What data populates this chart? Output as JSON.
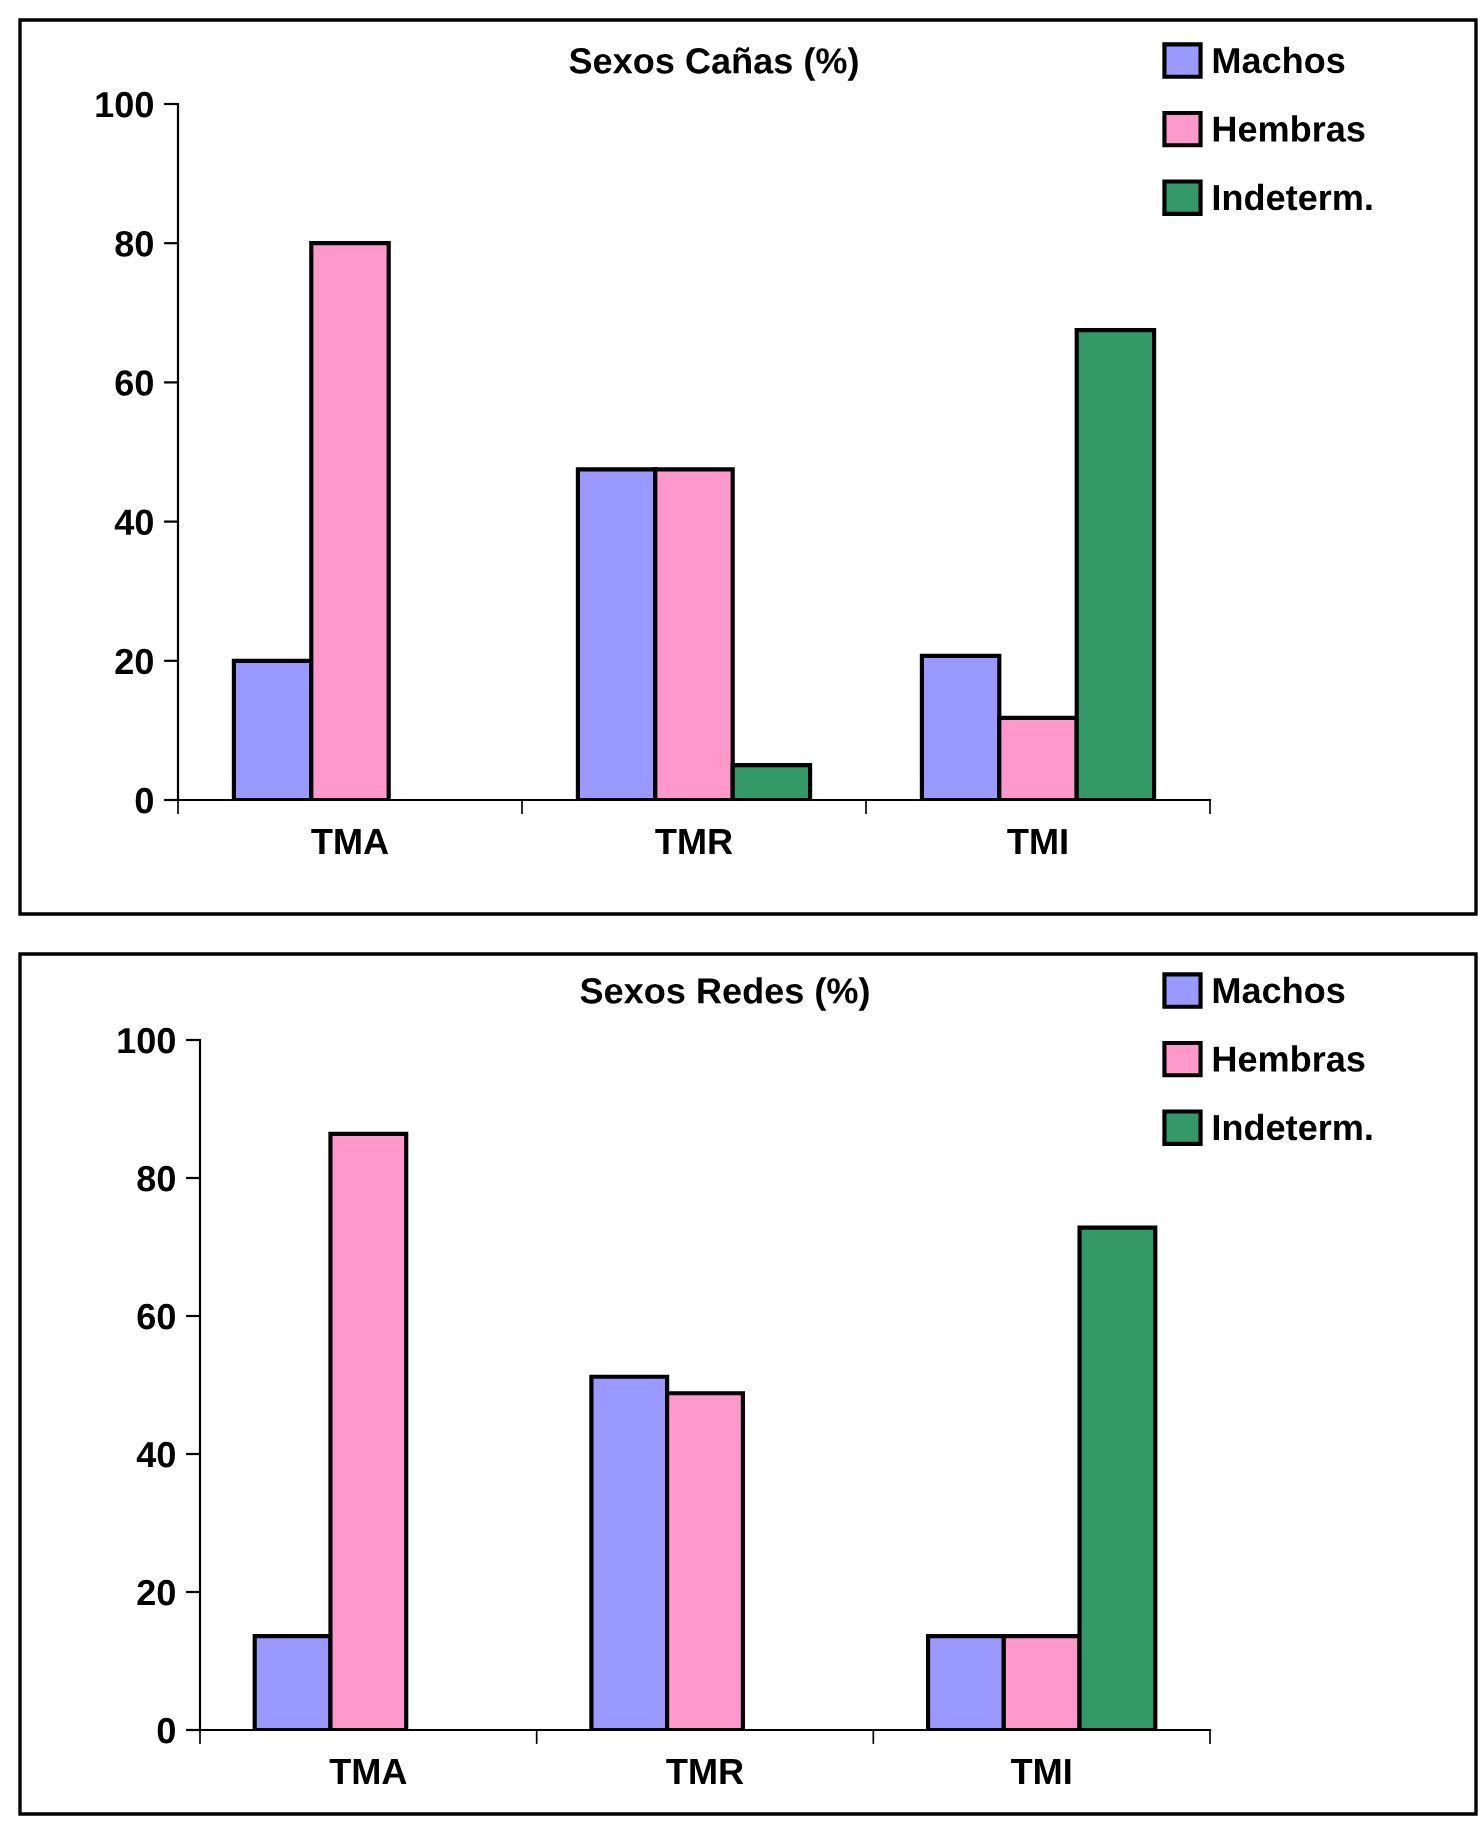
{
  "chart_data": [
    {
      "type": "bar",
      "title": "Sexos Cañas (%)",
      "categories": [
        "TMA",
        "TMR",
        "TMI"
      ],
      "ylim": [
        0,
        100
      ],
      "yticks": [
        0,
        20,
        40,
        60,
        80,
        100
      ],
      "grid": false,
      "legend": "top right",
      "series": [
        {
          "name": "Machos",
          "color": "#9999ff",
          "values": [
            20,
            47.5,
            20.7
          ]
        },
        {
          "name": "Hembras",
          "color": "#ff99cc",
          "values": [
            80,
            47.5,
            11.8
          ]
        },
        {
          "name": "Indeterm.",
          "color": "#339966",
          "values": [
            null,
            5,
            67.5
          ]
        }
      ]
    },
    {
      "type": "bar",
      "title": "Sexos Redes (%)",
      "categories": [
        "TMA",
        "TMR",
        "TMI"
      ],
      "ylim": [
        0,
        100
      ],
      "yticks": [
        0,
        20,
        40,
        60,
        80,
        100
      ],
      "grid": false,
      "legend": "top right",
      "series": [
        {
          "name": "Machos",
          "color": "#9999ff",
          "values": [
            13.6,
            51.2,
            13.6
          ]
        },
        {
          "name": "Hembras",
          "color": "#ff99cc",
          "values": [
            86.4,
            48.8,
            13.6
          ]
        },
        {
          "name": "Indeterm.",
          "color": "#339966",
          "values": [
            null,
            null,
            72.8
          ]
        }
      ]
    }
  ]
}
